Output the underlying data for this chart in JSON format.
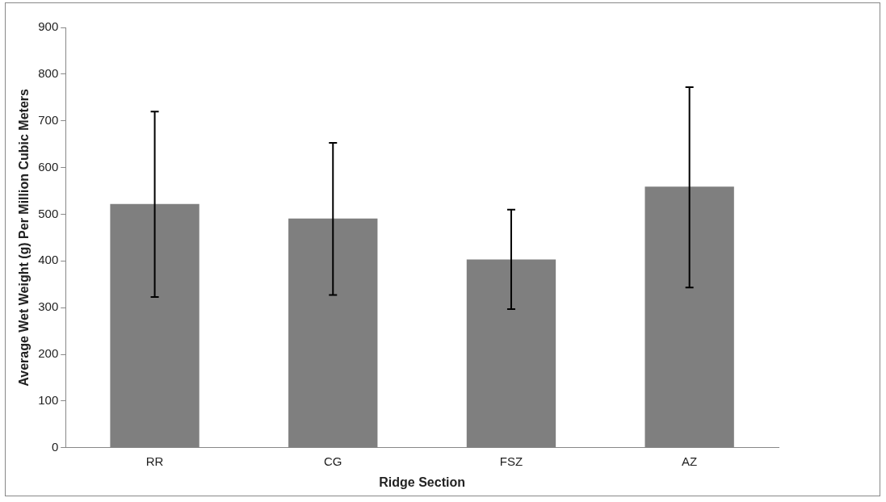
{
  "chart_data": {
    "type": "bar",
    "xlabel": "Ridge Section",
    "ylabel": "Average Wet Weight (g) Per Million Cubic Meters",
    "categories": [
      "RR",
      "CG",
      "FSZ",
      "AZ"
    ],
    "values": [
      522,
      491,
      403,
      559
    ],
    "errors": [
      [
        323,
        720
      ],
      [
        327,
        653
      ],
      [
        297,
        510
      ],
      [
        343,
        772
      ]
    ],
    "color": "#7f7f7f",
    "ylim": [
      0,
      900
    ],
    "yticks": [
      0,
      100,
      200,
      300,
      400,
      500,
      600,
      700,
      800,
      900
    ],
    "grid": false,
    "legend": false
  }
}
